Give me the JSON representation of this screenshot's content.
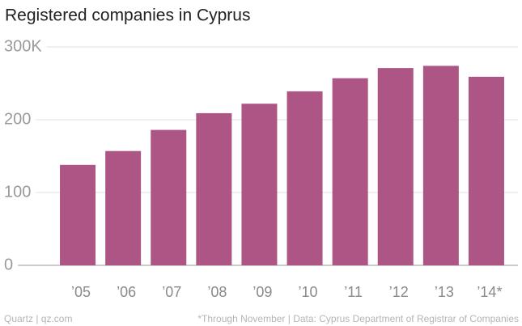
{
  "chart_data": {
    "type": "bar",
    "title": "Registered companies in Cyprus",
    "categories": [
      "’05",
      "’06",
      "’07",
      "’08",
      "’09",
      "’10",
      "’11",
      "’12",
      "’13",
      "’14*"
    ],
    "values": [
      138,
      157,
      186,
      209,
      222,
      239,
      257,
      271,
      274,
      259
    ],
    "color": "#ad5585",
    "ylim": [
      0,
      300
    ],
    "yticks": [
      0,
      100,
      200,
      {
        "value": 300,
        "label": "300K"
      }
    ],
    "grid": true,
    "source": "Quartz | qz.com",
    "note": "*Through November | Data: Cyprus Department of Registrar of Companies"
  }
}
